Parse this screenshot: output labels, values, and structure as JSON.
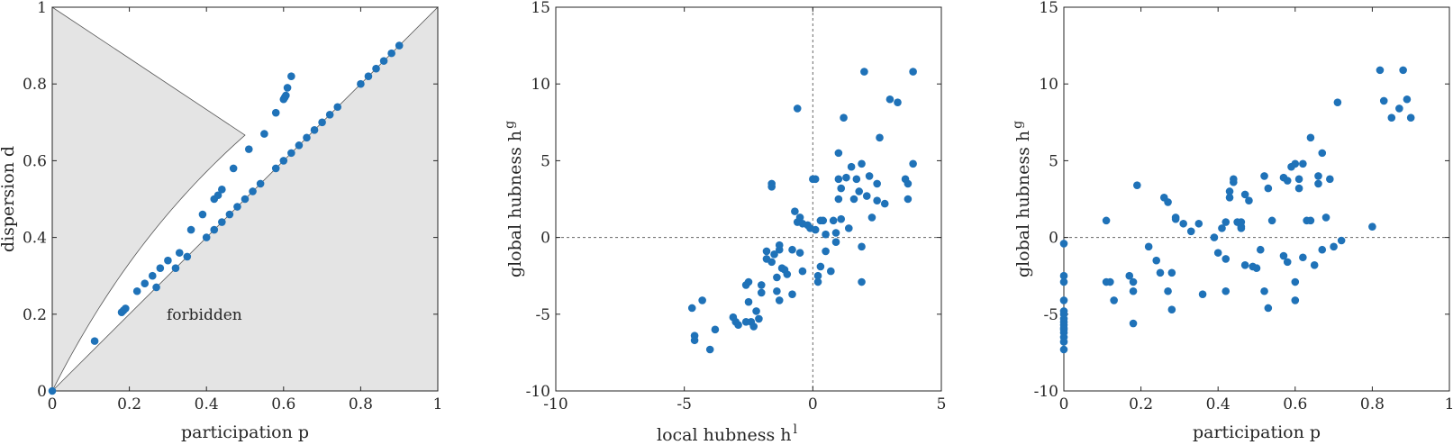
{
  "colors": {
    "marker": "#1f72b8",
    "region_fill": "#e4e4e4",
    "axis": "#262626"
  },
  "chart_data": [
    {
      "type": "scatter",
      "xlabel": "participation p",
      "ylabel": "dispersion d",
      "xlim": [
        0,
        1
      ],
      "ylim": [
        0,
        1
      ],
      "xticks": [
        0,
        0.2,
        0.4,
        0.6,
        0.8,
        1
      ],
      "yticks": [
        0,
        0.2,
        0.4,
        0.6,
        0.8,
        1
      ],
      "xtick_labels": [
        "0",
        "0.2",
        "0.4",
        "0.6",
        "0.8",
        "1"
      ],
      "ytick_labels": [
        "0",
        "0.2",
        "0.4",
        "0.6",
        "0.8",
        "1"
      ],
      "grid": false,
      "annotation": "forbidden",
      "forbidden_regions": [
        "above curve d = 2p/(1+p)",
        "below line d = p"
      ],
      "x": [
        0,
        0.11,
        0.18,
        0.185,
        0.19,
        0.22,
        0.24,
        0.26,
        0.28,
        0.3,
        0.33,
        0.36,
        0.39,
        0.42,
        0.43,
        0.44,
        0.47,
        0.51,
        0.55,
        0.58,
        0.6,
        0.603,
        0.606,
        0.61,
        0.62,
        0.27,
        0.32,
        0.35,
        0.4,
        0.42,
        0.44,
        0.46,
        0.48,
        0.5,
        0.52,
        0.54,
        0.58,
        0.6,
        0.62,
        0.64,
        0.66,
        0.68,
        0.7,
        0.72,
        0.74,
        0.8,
        0.82,
        0.84,
        0.86,
        0.88,
        0.9
      ],
      "y": [
        0,
        0.13,
        0.205,
        0.21,
        0.215,
        0.26,
        0.28,
        0.3,
        0.32,
        0.34,
        0.36,
        0.42,
        0.46,
        0.5,
        0.51,
        0.525,
        0.58,
        0.63,
        0.67,
        0.725,
        0.76,
        0.765,
        0.77,
        0.79,
        0.82,
        0.27,
        0.32,
        0.35,
        0.4,
        0.42,
        0.44,
        0.46,
        0.48,
        0.5,
        0.52,
        0.54,
        0.58,
        0.6,
        0.62,
        0.64,
        0.66,
        0.68,
        0.7,
        0.72,
        0.74,
        0.8,
        0.82,
        0.84,
        0.86,
        0.88,
        0.9
      ]
    },
    {
      "type": "scatter",
      "xlabel": "local hubness h",
      "xlabel_sup": "l",
      "ylabel": "global hubness h",
      "ylabel_sup": "g",
      "xlim": [
        -10,
        5
      ],
      "ylim": [
        -10,
        15
      ],
      "xticks": [
        -10,
        -5,
        0,
        5
      ],
      "yticks": [
        -10,
        -5,
        0,
        5,
        10,
        15
      ],
      "xtick_labels": [
        "-10",
        "-5",
        "0",
        "5"
      ],
      "ytick_labels": [
        "-10",
        "-5",
        "0",
        "5",
        "10",
        "15"
      ],
      "grid": false,
      "reference_lines": [
        "x = 0",
        "y = 0"
      ],
      "x": [
        -4.7,
        -4.6,
        -4.6,
        -4.3,
        -4.0,
        -3.8,
        -3.1,
        -3.0,
        -2.9,
        -2.6,
        -2.5,
        -2.5,
        -2.4,
        -2.3,
        -2.2,
        -2.1,
        -2.0,
        -2.0,
        -1.8,
        -1.6,
        -1.6,
        -1.5,
        -1.4,
        -1.4,
        -1.3,
        -1.3,
        -1.2,
        -1.1,
        -1.0,
        -0.8,
        -0.8,
        -0.7,
        -0.6,
        -0.5,
        -0.5,
        -0.4,
        -0.2,
        -0.1,
        0.0,
        0.1,
        0.1,
        0.2,
        0.2,
        0.3,
        0.4,
        0.5,
        0.5,
        0.7,
        0.8,
        0.9,
        1.0,
        1.0,
        1.0,
        1.1,
        1.1,
        1.2,
        1.3,
        1.4,
        1.5,
        1.6,
        1.7,
        1.8,
        1.9,
        1.9,
        2.0,
        2.1,
        2.2,
        2.3,
        2.5,
        2.6,
        2.8,
        3.0,
        3.3,
        3.6,
        3.7,
        3.7,
        3.9,
        3.9,
        -0.6,
        -1.6,
        -1.3,
        -2.6,
        -1.8,
        0.9,
        1.9,
        2.5,
        0.3,
        -0.4
      ],
      "y": [
        -4.6,
        -6.7,
        -6.4,
        -4.1,
        -7.3,
        -6.0,
        -5.2,
        -5.5,
        -5.7,
        -5.5,
        -4.2,
        -2.9,
        -5.5,
        -5.8,
        -4.8,
        -5.3,
        -3.1,
        -3.6,
        -1.4,
        3.5,
        3.3,
        -1.1,
        -2.6,
        -3.5,
        -0.8,
        -4.1,
        -2.0,
        -2.1,
        -2.4,
        -0.8,
        -3.7,
        1.7,
        1.0,
        1.3,
        -1.0,
        -2.2,
        0.8,
        0.6,
        3.8,
        3.8,
        0.5,
        -2.5,
        -2.9,
        -1.9,
        1.1,
        0.2,
        -0.9,
        -2.2,
        1.1,
        -0.3,
        5.5,
        3.8,
        2.5,
        3.2,
        1.2,
        7.8,
        3.9,
        0.6,
        4.6,
        2.5,
        3.8,
        3.0,
        -0.6,
        4.8,
        10.8,
        2.7,
        4.0,
        1.3,
        3.5,
        6.5,
        2.2,
        9.0,
        8.8,
        3.8,
        3.5,
        2.5,
        10.8,
        4.8,
        8.4,
        -1.6,
        -0.5,
        -3.1,
        -0.9,
        0.3,
        -2.9,
        2.4,
        1.1,
        0.9
      ]
    },
    {
      "type": "scatter",
      "xlabel": "participation p",
      "ylabel": "global hubness h",
      "ylabel_sup": "g",
      "xlim": [
        0,
        1
      ],
      "ylim": [
        -10,
        15
      ],
      "xticks": [
        0,
        0.2,
        0.4,
        0.6,
        0.8,
        1
      ],
      "yticks": [
        -10,
        -5,
        0,
        5,
        10,
        15
      ],
      "xtick_labels": [
        "0",
        "0.2",
        "0.4",
        "0.6",
        "0.8",
        "1"
      ],
      "ytick_labels": [
        "-10",
        "-5",
        "0",
        "5",
        "10",
        "15"
      ],
      "grid": false,
      "reference_lines": [
        "y = 0"
      ],
      "x": [
        0,
        0,
        0,
        0,
        0,
        0,
        0,
        0,
        0,
        0,
        0,
        0,
        0,
        0,
        0,
        0.11,
        0.11,
        0.12,
        0.13,
        0.17,
        0.18,
        0.18,
        0.18,
        0.19,
        0.22,
        0.24,
        0.25,
        0.26,
        0.27,
        0.27,
        0.28,
        0.28,
        0.29,
        0.29,
        0.31,
        0.33,
        0.36,
        0.39,
        0.4,
        0.41,
        0.42,
        0.42,
        0.43,
        0.43,
        0.44,
        0.44,
        0.45,
        0.46,
        0.46,
        0.47,
        0.47,
        0.48,
        0.49,
        0.5,
        0.51,
        0.52,
        0.53,
        0.53,
        0.54,
        0.57,
        0.57,
        0.58,
        0.58,
        0.59,
        0.6,
        0.6,
        0.61,
        0.61,
        0.62,
        0.62,
        0.63,
        0.64,
        0.64,
        0.65,
        0.66,
        0.66,
        0.67,
        0.67,
        0.68,
        0.69,
        0.7,
        0.71,
        0.72,
        0.8,
        0.82,
        0.83,
        0.85,
        0.87,
        0.88,
        0.89,
        0.9,
        0.6,
        0.42,
        0.46,
        0.35,
        0.52
      ],
      "y": [
        -0.4,
        -2.5,
        -2.9,
        -4.1,
        -4.8,
        -5.0,
        -5.3,
        -5.5,
        -5.7,
        -5.9,
        -6.0,
        -6.2,
        -6.5,
        -6.8,
        -7.3,
        1.1,
        -2.9,
        -2.9,
        -4.1,
        -2.5,
        -5.6,
        -2.9,
        -3.5,
        3.4,
        -0.6,
        -1.5,
        -2.3,
        2.6,
        2.3,
        -3.5,
        -2.3,
        -4.7,
        1.3,
        1.2,
        0.9,
        0.4,
        -3.7,
        0.0,
        -1.0,
        0.6,
        -1.4,
        -3.5,
        2.6,
        3.0,
        3.6,
        3.8,
        1.0,
        0.7,
        0.6,
        2.8,
        -1.8,
        2.4,
        -1.9,
        -2.0,
        -0.8,
        4.0,
        3.2,
        -4.6,
        1.1,
        -1.2,
        3.9,
        3.7,
        -1.6,
        4.6,
        4.8,
        -2.9,
        3.8,
        3.2,
        -1.3,
        4.8,
        1.1,
        6.5,
        1.1,
        -1.8,
        4.0,
        3.5,
        5.5,
        -0.8,
        1.3,
        3.8,
        -0.6,
        8.8,
        -0.2,
        0.7,
        10.9,
        8.9,
        7.8,
        8.4,
        10.9,
        9.0,
        7.8,
        -4.1,
        1.0,
        1.0,
        0.9,
        -3.5
      ]
    }
  ]
}
